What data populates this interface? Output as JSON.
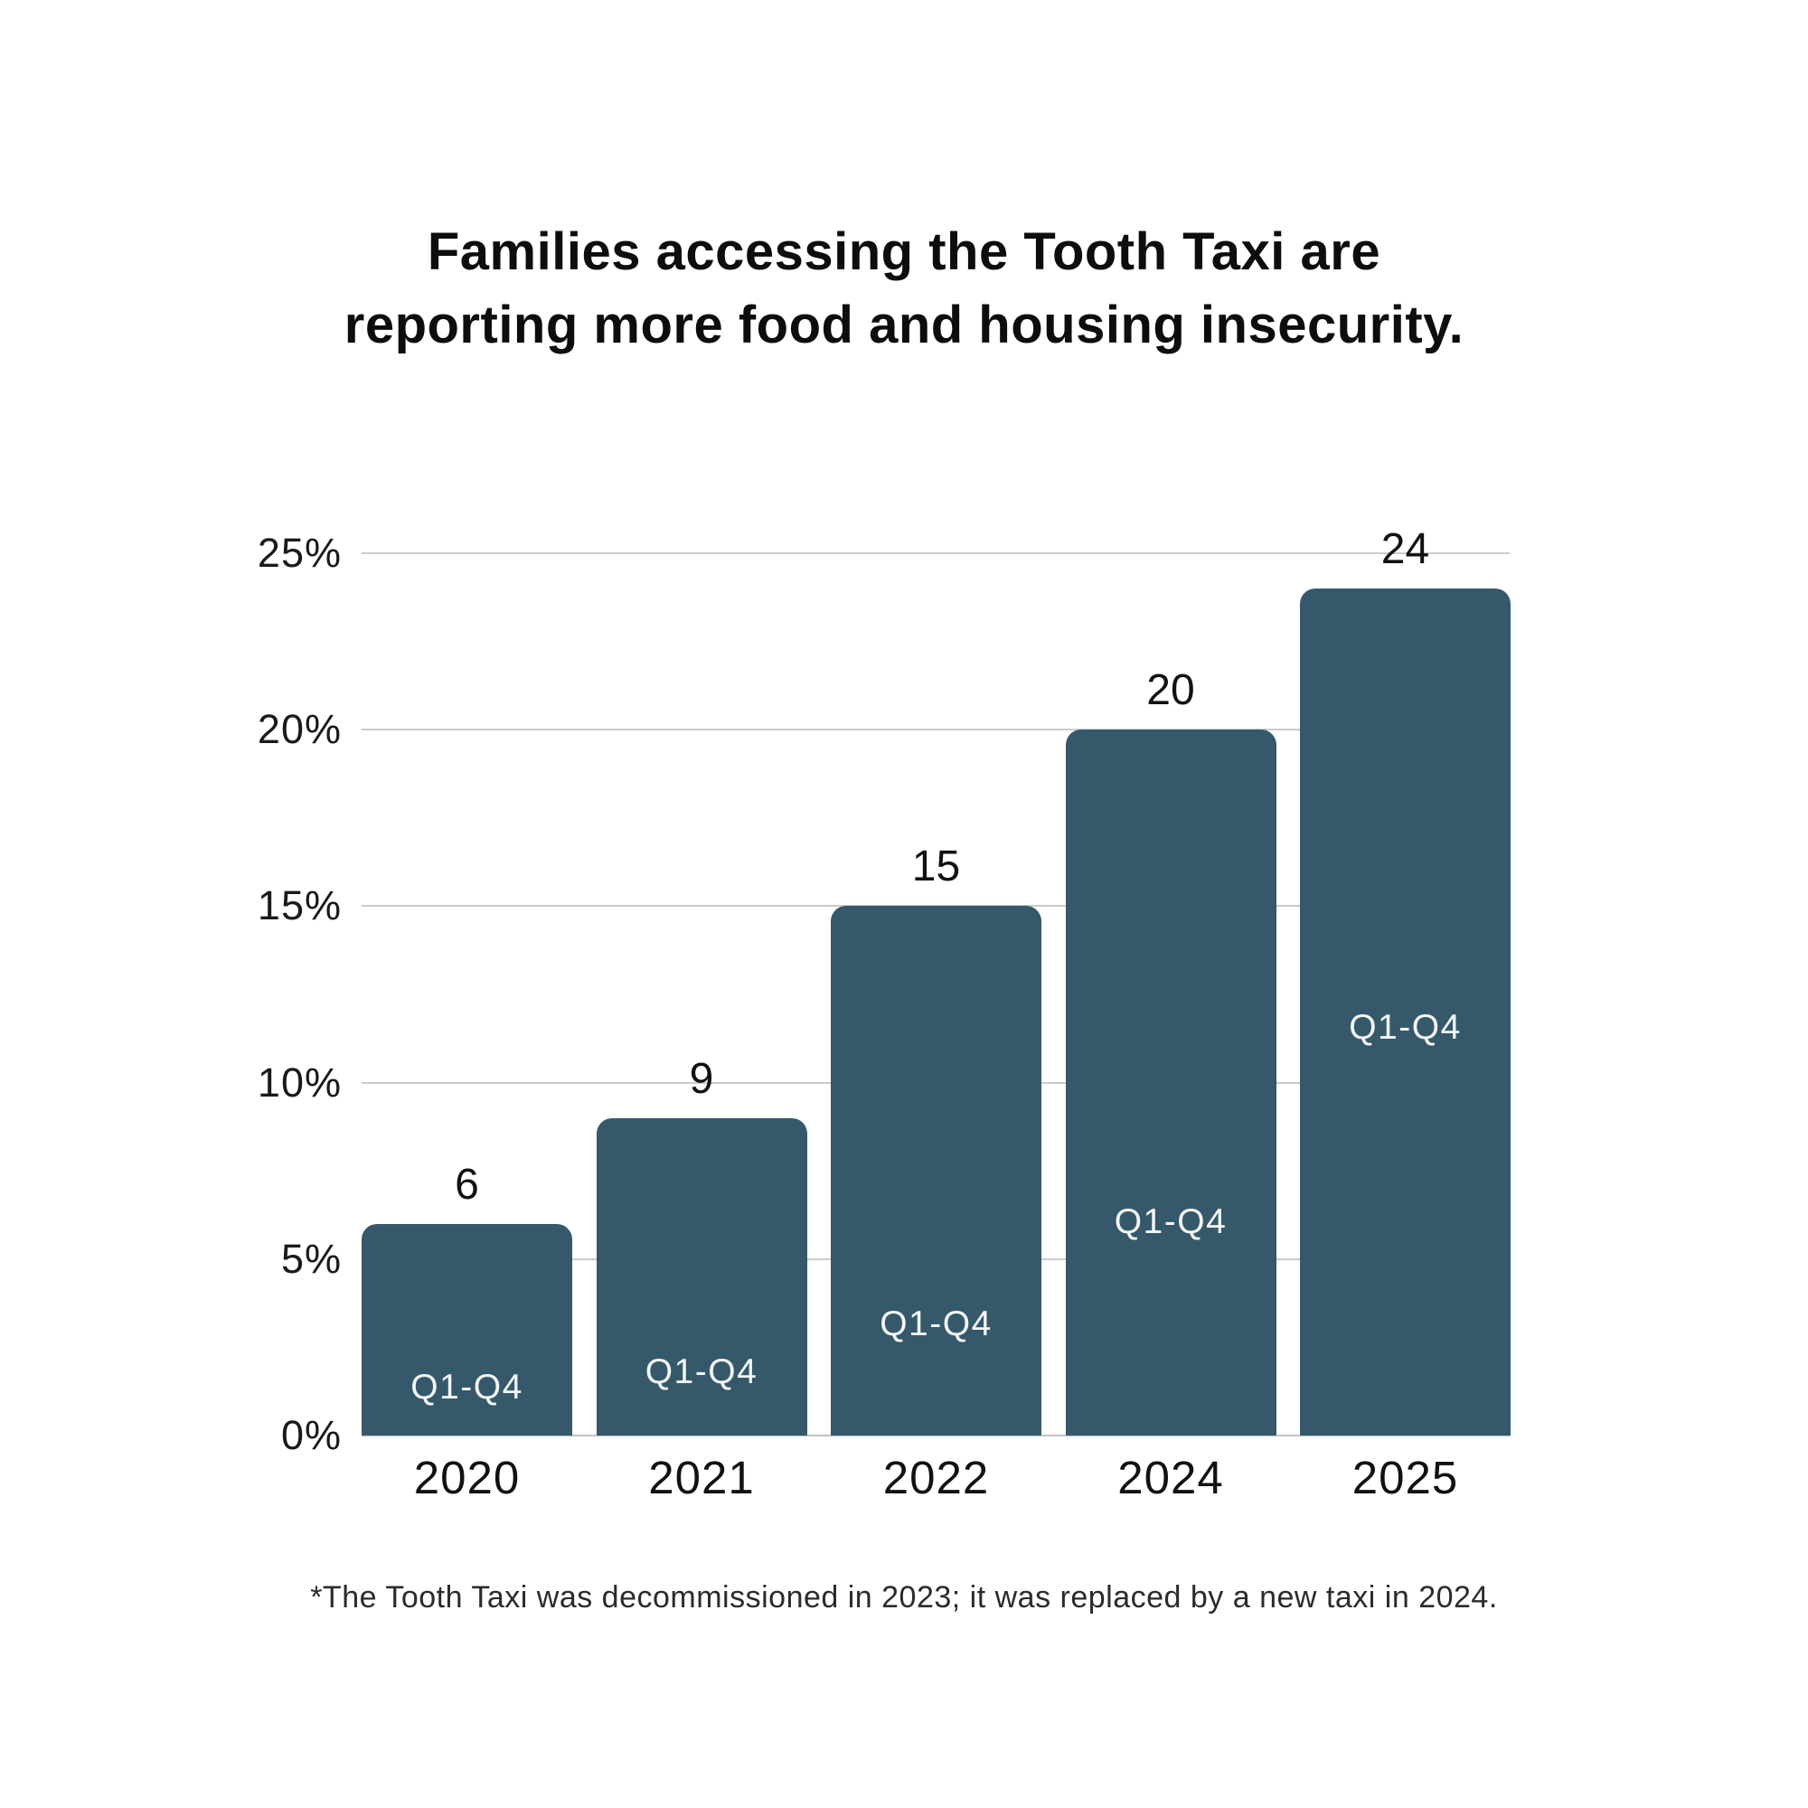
{
  "title": {
    "line1": "Families accessing the Tooth Taxi are",
    "line2": "reporting more food and housing insecurity."
  },
  "footnote": "*The Tooth Taxi was decommissioned in 2023; it was replaced by a new taxi in 2024.",
  "colors": {
    "bar": "#35596b",
    "gridline": "#cbcbcb",
    "axis_line": "#c3c3c3",
    "bar_inner_label": "#f4f6f6",
    "value_label": "#111111",
    "title_text": "#0d0d0d",
    "footnote_text": "#2b2b2b",
    "background": "#ffffff"
  },
  "chart_data": {
    "type": "bar",
    "title": "Families accessing the Tooth Taxi are reporting more food and housing insecurity.",
    "categories": [
      "2020",
      "2021",
      "2022",
      "2024",
      "2025"
    ],
    "values": [
      6,
      9,
      15,
      20,
      24
    ],
    "value_labels": [
      "6",
      "9",
      "15",
      "20",
      "24"
    ],
    "bar_inner_labels": [
      "Q1-Q4",
      "Q1-Q4",
      "Q1-Q4",
      "Q1-Q4",
      "Q1-Q4"
    ],
    "bar_inner_label_height_pct": [
      1.35,
      1.8,
      3.15,
      6.05,
      11.55
    ],
    "y_ticks": [
      "0%",
      "5%",
      "10%",
      "15%",
      "20%",
      "25%"
    ],
    "y_tick_values": [
      0,
      5,
      10,
      15,
      20,
      25
    ],
    "ylim": [
      0,
      25
    ],
    "unit": "percent",
    "grid": true,
    "legend": false,
    "xlabel": "",
    "ylabel": "",
    "note": "*The Tooth Taxi was decommissioned in 2023; it was replaced by a new taxi in 2024."
  }
}
